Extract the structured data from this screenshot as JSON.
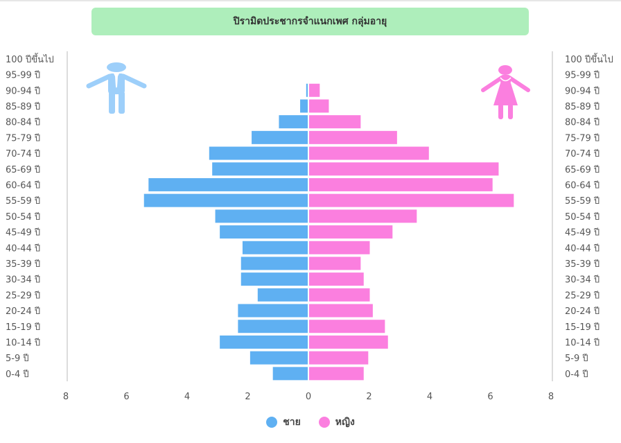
{
  "chart_data": {
    "type": "bar",
    "orientation": "horizontal-population-pyramid",
    "title": "ปิรามิดประชากรจำแนกเพศ กลุ่มอายุ",
    "categories": [
      "100 ปีขึ้นไป",
      "95-99 ปี",
      "90-94 ปี",
      "85-89 ปี",
      "80-84 ปี",
      "75-79 ปี",
      "70-74 ปี",
      "65-69 ปี",
      "60-64 ปี",
      "55-59 ปี",
      "50-54 ปี",
      "45-49 ปี",
      "40-44 ปี",
      "35-39 ปี",
      "30-34 ปี",
      "25-29 ปี",
      "20-24 ปี",
      "15-19 ปี",
      "10-14 ปี",
      "5-9 ปี",
      "0-4 ปี"
    ],
    "series": [
      {
        "name": "ชาย",
        "color": "#5fb0f2",
        "values": [
          0,
          0,
          0.05,
          0.25,
          0.95,
          1.85,
          3.25,
          3.15,
          5.25,
          5.4,
          3.05,
          2.9,
          2.15,
          2.2,
          2.2,
          1.65,
          2.3,
          2.3,
          2.9,
          1.9,
          1.15
        ]
      },
      {
        "name": "หญิง",
        "color": "#fb7fdf",
        "values": [
          0,
          0,
          0.35,
          0.65,
          1.7,
          2.9,
          3.95,
          6.25,
          6.05,
          6.75,
          3.55,
          2.75,
          2.0,
          1.7,
          1.8,
          2.0,
          2.1,
          2.5,
          2.6,
          1.95,
          1.8
        ]
      }
    ],
    "x_ticks": [
      "8",
      "6",
      "4",
      "2",
      "0",
      "2",
      "4",
      "6",
      "8"
    ],
    "xlim": [
      -8,
      8
    ],
    "legend_position": "bottom-center",
    "grid": false
  },
  "legend": {
    "male_label": "ชาย",
    "female_label": "หญิง"
  },
  "icons": {
    "male": "man-icon",
    "female": "woman-icon"
  }
}
